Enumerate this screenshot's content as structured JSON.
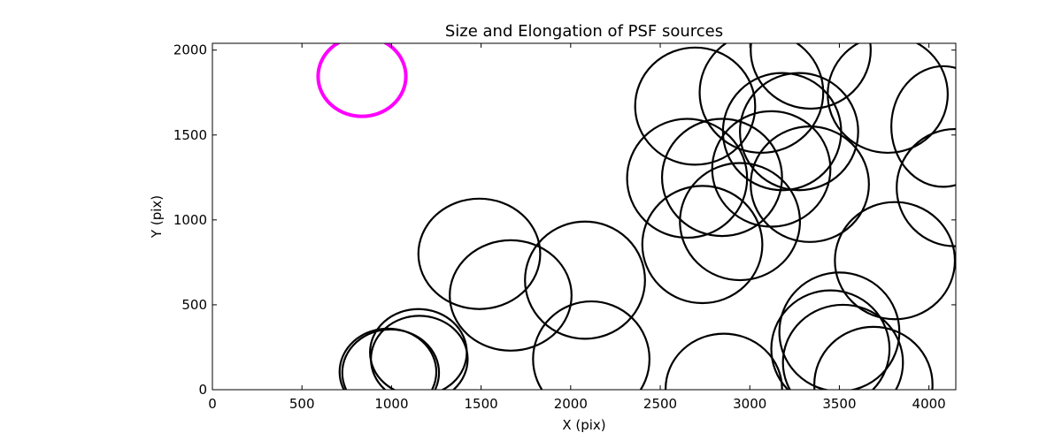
{
  "chart_data": {
    "type": "scatter",
    "title": "Size and Elongation of PSF sources",
    "xlabel": "X (pix)",
    "ylabel": "Y (pix)",
    "xlim": [
      0,
      4150
    ],
    "ylim": [
      0,
      2040
    ],
    "xticks": [
      0,
      500,
      1000,
      1500,
      2000,
      2500,
      3000,
      3500,
      4000
    ],
    "yticks": [
      0,
      500,
      1000,
      1500,
      2000
    ],
    "grid": false,
    "marker": "ellipse",
    "series": [
      {
        "color": "#ff00ff",
        "points": [
          {
            "x": 835,
            "y": 1845,
            "rx": 245,
            "ry": 235
          }
        ]
      },
      {
        "color": "#000000",
        "points": [
          {
            "x": 980,
            "y": 105,
            "rx": 270,
            "ry": 255
          },
          {
            "x": 995,
            "y": 100,
            "rx": 270,
            "ry": 255
          },
          {
            "x": 1150,
            "y": 220,
            "rx": 270,
            "ry": 255
          },
          {
            "x": 1155,
            "y": 180,
            "rx": 270,
            "ry": 255
          },
          {
            "x": 1490,
            "y": 800,
            "rx": 340,
            "ry": 325
          },
          {
            "x": 1665,
            "y": 555,
            "rx": 340,
            "ry": 325
          },
          {
            "x": 2080,
            "y": 645,
            "rx": 335,
            "ry": 345
          },
          {
            "x": 2115,
            "y": 180,
            "rx": 325,
            "ry": 340
          },
          {
            "x": 2650,
            "y": 1245,
            "rx": 335,
            "ry": 350
          },
          {
            "x": 2695,
            "y": 1670,
            "rx": 335,
            "ry": 345
          },
          {
            "x": 2735,
            "y": 855,
            "rx": 335,
            "ry": 345
          },
          {
            "x": 2845,
            "y": 1250,
            "rx": 335,
            "ry": 345
          },
          {
            "x": 2855,
            "y": 5,
            "rx": 325,
            "ry": 325
          },
          {
            "x": 2945,
            "y": 990,
            "rx": 335,
            "ry": 345
          },
          {
            "x": 3065,
            "y": 1750,
            "rx": 345,
            "ry": 355
          },
          {
            "x": 3120,
            "y": 1300,
            "rx": 330,
            "ry": 340
          },
          {
            "x": 3180,
            "y": 1520,
            "rx": 330,
            "ry": 345
          },
          {
            "x": 3275,
            "y": 1520,
            "rx": 330,
            "ry": 345
          },
          {
            "x": 3335,
            "y": 1210,
            "rx": 330,
            "ry": 340
          },
          {
            "x": 3340,
            "y": 2000,
            "rx": 335,
            "ry": 345
          },
          {
            "x": 3450,
            "y": 240,
            "rx": 330,
            "ry": 345
          },
          {
            "x": 3500,
            "y": 340,
            "rx": 335,
            "ry": 350
          },
          {
            "x": 3520,
            "y": 160,
            "rx": 335,
            "ry": 340
          },
          {
            "x": 3690,
            "y": 30,
            "rx": 330,
            "ry": 340
          },
          {
            "x": 3770,
            "y": 1740,
            "rx": 335,
            "ry": 345
          },
          {
            "x": 3810,
            "y": 760,
            "rx": 335,
            "ry": 345
          },
          {
            "x": 4080,
            "y": 1550,
            "rx": 290,
            "ry": 355
          },
          {
            "x": 4145,
            "y": 1190,
            "rx": 325,
            "ry": 345
          }
        ]
      }
    ]
  }
}
